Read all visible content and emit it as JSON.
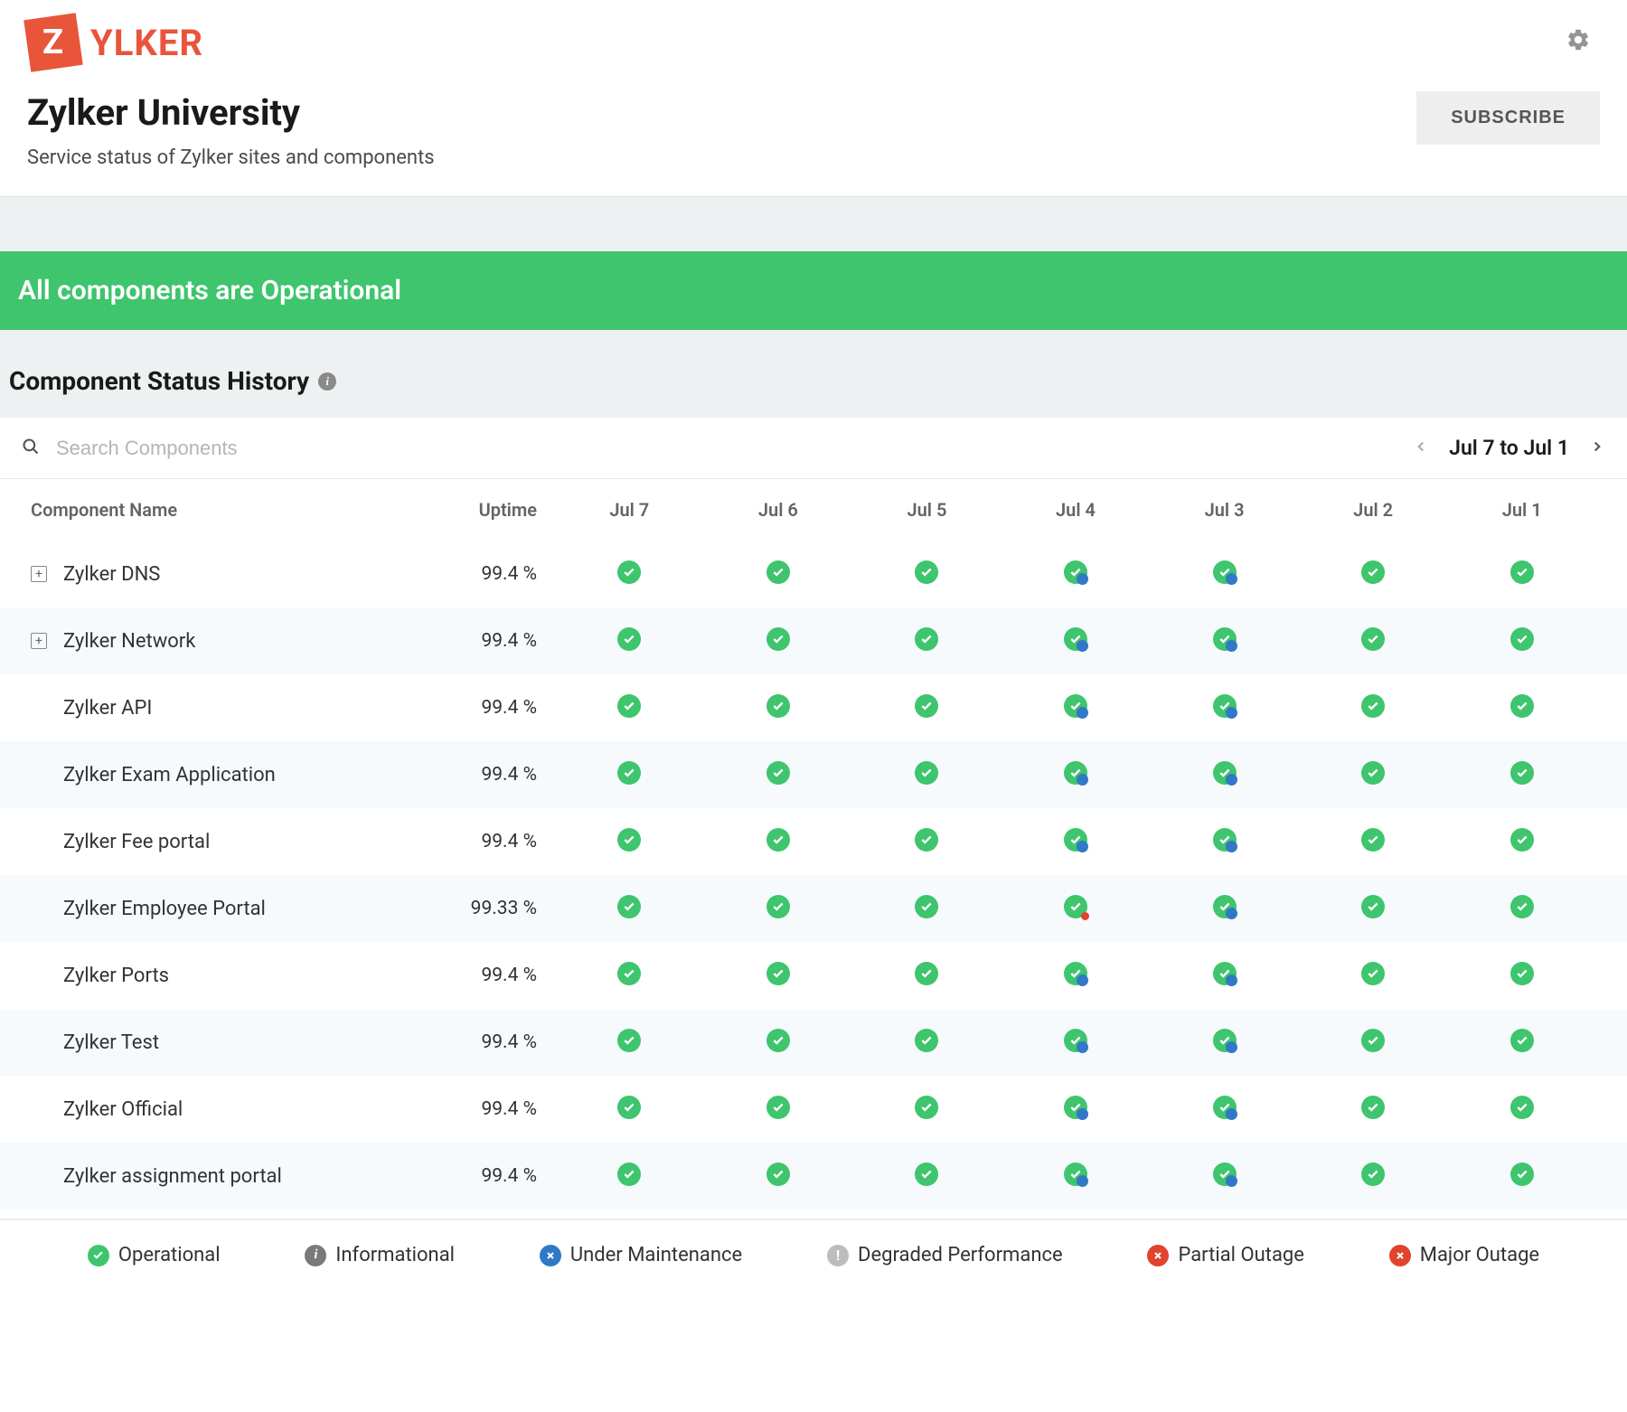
{
  "logo": {
    "letter": "Z",
    "text": "YLKER"
  },
  "page": {
    "title": "Zylker University",
    "subtitle": "Service status of Zylker sites and components",
    "subscribe_label": "SUBSCRIBE"
  },
  "banner": {
    "text": "All components are Operational"
  },
  "history": {
    "title": "Component Status History",
    "search_placeholder": "Search Components",
    "date_range": "Jul 7 to Jul 1"
  },
  "columns": {
    "name": "Component Name",
    "uptime": "Uptime",
    "days": [
      "Jul 7",
      "Jul 6",
      "Jul 5",
      "Jul 4",
      "Jul 3",
      "Jul 2",
      "Jul 1"
    ]
  },
  "rows": [
    {
      "name": "Zylker DNS",
      "expandable": true,
      "uptime": "99.4 %",
      "status": [
        "ok",
        "ok",
        "ok",
        "ok-blue",
        "ok-blue",
        "ok",
        "ok"
      ]
    },
    {
      "name": "Zylker Network",
      "expandable": true,
      "uptime": "99.4 %",
      "status": [
        "ok",
        "ok",
        "ok",
        "ok-blue",
        "ok-blue",
        "ok",
        "ok"
      ]
    },
    {
      "name": "Zylker API",
      "expandable": false,
      "uptime": "99.4 %",
      "status": [
        "ok",
        "ok",
        "ok",
        "ok-blue",
        "ok-blue",
        "ok",
        "ok"
      ]
    },
    {
      "name": "Zylker Exam Application",
      "expandable": false,
      "uptime": "99.4 %",
      "status": [
        "ok",
        "ok",
        "ok",
        "ok-blue",
        "ok-blue",
        "ok",
        "ok"
      ]
    },
    {
      "name": "Zylker Fee portal",
      "expandable": false,
      "uptime": "99.4 %",
      "status": [
        "ok",
        "ok",
        "ok",
        "ok-blue",
        "ok-blue",
        "ok",
        "ok"
      ]
    },
    {
      "name": "Zylker Employee Portal",
      "expandable": false,
      "uptime": "99.33 %",
      "status": [
        "ok",
        "ok",
        "ok",
        "ok-red",
        "ok-blue",
        "ok",
        "ok"
      ]
    },
    {
      "name": "Zylker Ports",
      "expandable": false,
      "uptime": "99.4 %",
      "status": [
        "ok",
        "ok",
        "ok",
        "ok-blue",
        "ok-blue",
        "ok",
        "ok"
      ]
    },
    {
      "name": "Zylker Test",
      "expandable": false,
      "uptime": "99.4 %",
      "status": [
        "ok",
        "ok",
        "ok",
        "ok-blue",
        "ok-blue",
        "ok",
        "ok"
      ]
    },
    {
      "name": "Zylker Official",
      "expandable": false,
      "uptime": "99.4 %",
      "status": [
        "ok",
        "ok",
        "ok",
        "ok-blue",
        "ok-blue",
        "ok",
        "ok"
      ]
    },
    {
      "name": "Zylker assignment portal",
      "expandable": false,
      "uptime": "99.4 %",
      "status": [
        "ok",
        "ok",
        "ok",
        "ok-blue",
        "ok-blue",
        "ok",
        "ok"
      ]
    }
  ],
  "legend": [
    {
      "label": "Operational",
      "color": "green",
      "glyph": "check"
    },
    {
      "label": "Informational",
      "color": "gray-dark",
      "glyph": "i"
    },
    {
      "label": "Under Maintenance",
      "color": "blue",
      "glyph": "x"
    },
    {
      "label": "Degraded Performance",
      "color": "gray-light",
      "glyph": "!"
    },
    {
      "label": "Partial Outage",
      "color": "red",
      "glyph": "x"
    },
    {
      "label": "Major Outage",
      "color": "red",
      "glyph": "x"
    }
  ],
  "colors": {
    "brand": "#e8553a",
    "operational": "#3ec56d",
    "blue": "#3178c6",
    "red": "#e0432e",
    "gray_dark": "#7a7a7a",
    "gray_light": "#bdbdbd",
    "background_alt": "#f6fafd",
    "section_gray": "#eef1f2"
  }
}
